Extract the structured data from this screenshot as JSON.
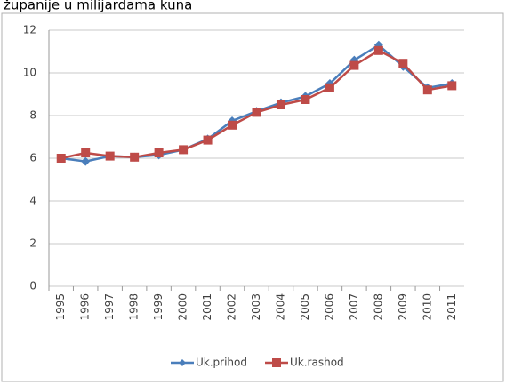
{
  "chart_data": {
    "type": "line",
    "title": "županije u milijardama kuna",
    "categories": [
      "1995",
      "1996",
      "1997",
      "1998",
      "1999",
      "2000",
      "2001",
      "2002",
      "2003",
      "2004",
      "2005",
      "2006",
      "2007",
      "2008",
      "2009",
      "2010",
      "2011"
    ],
    "series": [
      {
        "name": "Uk.prihod",
        "color": "#4a7ebb",
        "marker": "diamond",
        "values": [
          6.0,
          5.85,
          6.1,
          6.05,
          6.15,
          6.4,
          6.9,
          7.75,
          8.2,
          8.6,
          8.9,
          9.5,
          10.6,
          11.3,
          10.3,
          9.3,
          9.5
        ]
      },
      {
        "name": "Uk.rashod",
        "color": "#be4b48",
        "marker": "square",
        "values": [
          6.0,
          6.25,
          6.1,
          6.05,
          6.25,
          6.4,
          6.85,
          7.55,
          8.15,
          8.5,
          8.75,
          9.3,
          10.35,
          11.05,
          10.45,
          9.2,
          9.4
        ]
      }
    ],
    "ylim": [
      0,
      12
    ],
    "yticks": [
      0,
      2,
      4,
      6,
      8,
      10,
      12
    ],
    "grid": true,
    "legend": "bottom"
  }
}
